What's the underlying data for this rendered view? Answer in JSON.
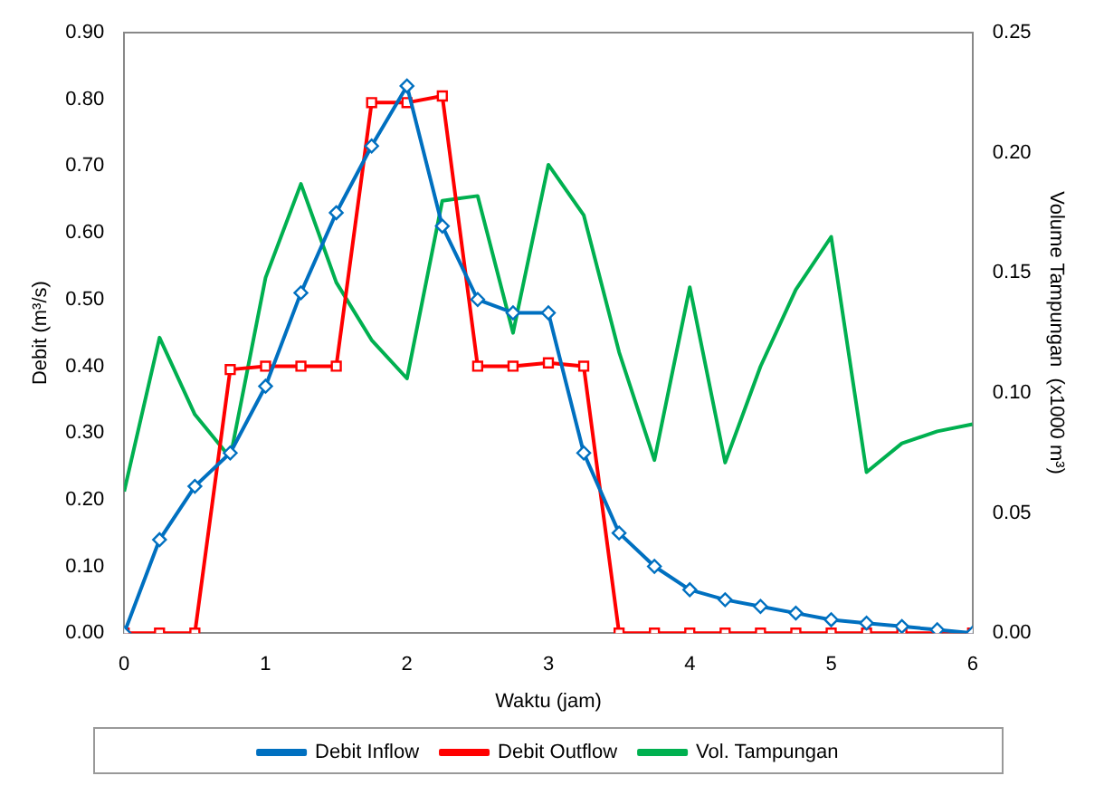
{
  "chart_data": {
    "type": "line",
    "xlabel": "Waktu (jam)",
    "ylabel": "Debit (m³/s)",
    "y2label": "Volume Tampungan  (x1000 m³)",
    "x": [
      0,
      0.25,
      0.5,
      0.75,
      1,
      1.25,
      1.5,
      1.75,
      2,
      2.25,
      2.5,
      2.75,
      3,
      3.25,
      3.5,
      3.75,
      4,
      4.25,
      4.5,
      4.75,
      5,
      5.25,
      5.5,
      5.75,
      6
    ],
    "xlim": [
      0,
      6
    ],
    "xticks": [
      0,
      1,
      2,
      3,
      4,
      5,
      6
    ],
    "ylim": [
      0,
      0.9
    ],
    "yticks": [
      {
        "value": 0,
        "label": "0.00"
      },
      {
        "value": 0.1,
        "label": "0.10"
      },
      {
        "value": 0.2,
        "label": "0.20"
      },
      {
        "value": 0.3,
        "label": "0.30"
      },
      {
        "value": 0.4,
        "label": "0.40"
      },
      {
        "value": 0.5,
        "label": "0.50"
      },
      {
        "value": 0.6,
        "label": "0.60"
      },
      {
        "value": 0.7,
        "label": "0.70"
      },
      {
        "value": 0.8,
        "label": "0.80"
      },
      {
        "value": 0.9,
        "label": "0.90"
      }
    ],
    "y2lim": [
      0,
      0.25
    ],
    "y2ticks": [
      {
        "value": 0,
        "label": "0.00"
      },
      {
        "value": 0.05,
        "label": "0.05"
      },
      {
        "value": 0.1,
        "label": "0.10"
      },
      {
        "value": 0.15,
        "label": "0.15"
      },
      {
        "value": 0.2,
        "label": "0.20"
      },
      {
        "value": 0.25,
        "label": "0.25"
      }
    ],
    "grid": false,
    "legend": "bottom",
    "series": [
      {
        "name": "Debit Inflow",
        "color": "#0070c0",
        "marker": "diamond",
        "values": [
          0,
          0.14,
          0.22,
          0.27,
          0.37,
          0.51,
          0.63,
          0.73,
          0.82,
          0.61,
          0.5,
          0.48,
          0.48,
          0.27,
          0.15,
          0.1,
          0.065,
          0.05,
          0.04,
          0.03,
          0.02,
          0.015,
          0.01,
          0.005,
          0
        ]
      },
      {
        "name": "Debit Outflow",
        "color": "#ff0000",
        "marker": "square",
        "values": [
          0,
          0,
          0,
          0.395,
          0.4,
          0.4,
          0.4,
          0.795,
          0.795,
          0.805,
          0.4,
          0.4,
          0.405,
          0.4,
          0,
          0,
          0,
          0,
          0,
          0,
          0,
          0,
          0,
          0,
          0
        ]
      },
      {
        "name": "Vol. Tampungan",
        "color": "#00b050",
        "marker": "none",
        "axis": "y2",
        "values": [
          0.059,
          0.123,
          0.091,
          0.073,
          0.148,
          0.187,
          0.146,
          0.122,
          0.106,
          0.18,
          0.182,
          0.125,
          0.195,
          0.174,
          0.117,
          0.072,
          0.144,
          0.071,
          0.111,
          0.143,
          0.165,
          0.067,
          0.079,
          0.084,
          0.087
        ]
      }
    ]
  }
}
